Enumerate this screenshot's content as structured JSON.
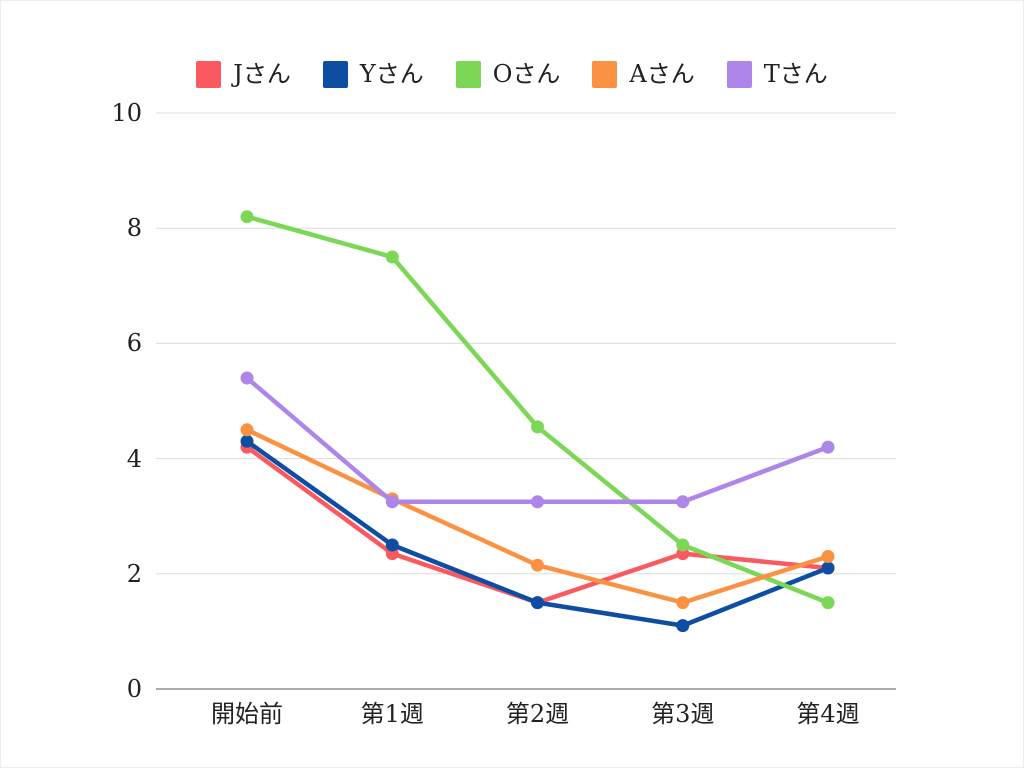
{
  "chart_data": {
    "type": "line",
    "title": "",
    "xlabel": "",
    "ylabel": "",
    "categories": [
      "開始前",
      "第1週",
      "第2週",
      "第3週",
      "第4週"
    ],
    "series": [
      {
        "name": "Jさん",
        "color": "#FA5A5F",
        "values": [
          4.2,
          2.35,
          1.5,
          2.35,
          2.1
        ]
      },
      {
        "name": "Yさん",
        "color": "#0D4EA3",
        "values": [
          4.3,
          2.5,
          1.5,
          1.1,
          2.1
        ]
      },
      {
        "name": "Oさん",
        "color": "#7BD755",
        "values": [
          8.2,
          7.5,
          4.55,
          2.5,
          1.5
        ]
      },
      {
        "name": "Aさん",
        "color": "#FB9243",
        "values": [
          4.5,
          3.3,
          2.15,
          1.5,
          2.3
        ]
      },
      {
        "name": "Tさん",
        "color": "#AE86EA",
        "values": [
          5.4,
          3.25,
          3.25,
          3.25,
          4.2
        ]
      }
    ],
    "ylim": [
      0,
      10
    ],
    "y_ticks": [
      0,
      2,
      4,
      6,
      8,
      10
    ],
    "grid": true,
    "legend_position": "top",
    "marker": "circle"
  },
  "colors": {
    "gridline": "#dcdcdc",
    "axis_line": "#8f8f8f",
    "text": "#212121",
    "background": "#ffffff"
  }
}
